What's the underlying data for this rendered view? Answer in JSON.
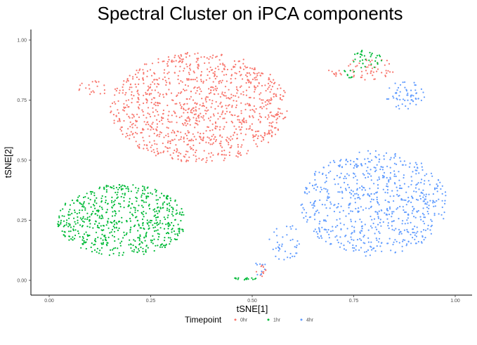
{
  "chart_data": {
    "type": "scatter",
    "title": "Spectral Cluster on iPCA components",
    "xlabel": "tSNE[1]",
    "ylabel": "tSNE[2]",
    "xlim": [
      -0.04,
      1.03
    ],
    "ylim": [
      -0.04,
      1.01
    ],
    "x_ticks": [
      "0.00",
      "0.25",
      "0.50",
      "0.75",
      "1.00"
    ],
    "y_ticks": [
      "0.00",
      "0.25",
      "0.50",
      "0.75",
      "1.00"
    ],
    "grid": false,
    "legend_position": "bottom",
    "legend_title": "Timepoint",
    "series": [
      {
        "name": "0hr",
        "color": "#F8766D",
        "clusters": [
          {
            "cx": 0.37,
            "cy": 0.72,
            "rx": 0.22,
            "ry": 0.23,
            "n": 1100
          },
          {
            "cx": 0.52,
            "cy": 0.04,
            "rx": 0.015,
            "ry": 0.025,
            "n": 12
          },
          {
            "cx": 0.79,
            "cy": 0.88,
            "rx": 0.06,
            "ry": 0.05,
            "n": 50
          },
          {
            "cx": 0.7,
            "cy": 0.86,
            "rx": 0.02,
            "ry": 0.02,
            "n": 10
          },
          {
            "cx": 0.11,
            "cy": 0.8,
            "rx": 0.04,
            "ry": 0.03,
            "n": 20
          }
        ]
      },
      {
        "name": "1hr",
        "color": "#00BA38",
        "clusters": [
          {
            "cx": 0.18,
            "cy": 0.25,
            "rx": 0.16,
            "ry": 0.15,
            "n": 650
          },
          {
            "cx": 0.48,
            "cy": 0.005,
            "rx": 0.035,
            "ry": 0.006,
            "n": 15
          },
          {
            "cx": 0.78,
            "cy": 0.92,
            "rx": 0.04,
            "ry": 0.04,
            "n": 35
          },
          {
            "cx": 0.74,
            "cy": 0.86,
            "rx": 0.02,
            "ry": 0.02,
            "n": 10
          }
        ]
      },
      {
        "name": "4hr",
        "color": "#619CFF",
        "clusters": [
          {
            "cx": 0.8,
            "cy": 0.32,
            "rx": 0.18,
            "ry": 0.22,
            "n": 700
          },
          {
            "cx": 0.58,
            "cy": 0.16,
            "rx": 0.04,
            "ry": 0.08,
            "n": 40
          },
          {
            "cx": 0.88,
            "cy": 0.77,
            "rx": 0.05,
            "ry": 0.06,
            "n": 60
          },
          {
            "cx": 0.52,
            "cy": 0.05,
            "rx": 0.02,
            "ry": 0.03,
            "n": 10
          }
        ]
      }
    ]
  }
}
